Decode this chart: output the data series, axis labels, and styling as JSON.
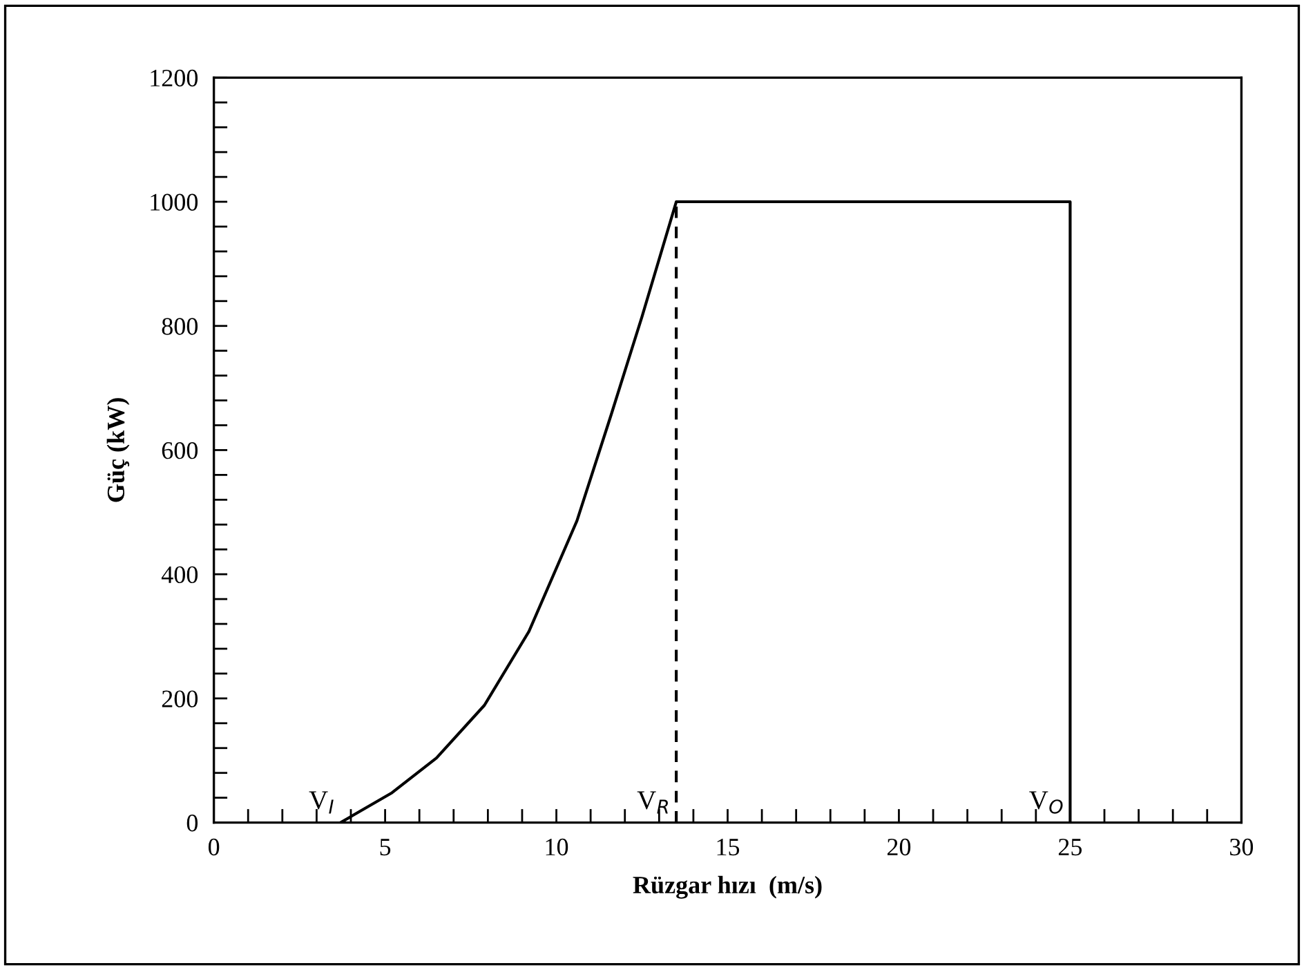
{
  "chart_data": {
    "type": "line",
    "xlabel": "Rüzgar hızı  (m/s)",
    "ylabel": "Güç (kW)",
    "xlim": [
      0,
      30
    ],
    "xticks": [
      0,
      5,
      10,
      15,
      20,
      25,
      30
    ],
    "ylim": [
      0,
      1200
    ],
    "yticks": [
      0,
      200,
      400,
      600,
      800,
      1000,
      1200
    ],
    "grid": false,
    "legend": false,
    "marker": "none",
    "series": [
      {
        "color": "#000000",
        "x": [
          3.7,
          5.2,
          6.5,
          7.9,
          9.2,
          10.6,
          11.6,
          12.5,
          13.5,
          25,
          25
        ],
        "values": [
          0,
          48,
          104,
          189,
          308,
          486,
          657,
          815,
          1000,
          1000,
          0
        ],
        "line_style": "solid"
      },
      {
        "color": "#000000",
        "x": [
          13.5,
          13.5
        ],
        "values": [
          0,
          1000
        ],
        "line_style": "dashed"
      }
    ],
    "annotations": [
      {
        "text": "V$_{I}$",
        "x": 3.7,
        "y": 0
      },
      {
        "text": "V$_{R}$",
        "x": 13.5,
        "y": 0
      },
      {
        "text": "V$_{O}$",
        "x": 25,
        "y": 0
      }
    ]
  }
}
